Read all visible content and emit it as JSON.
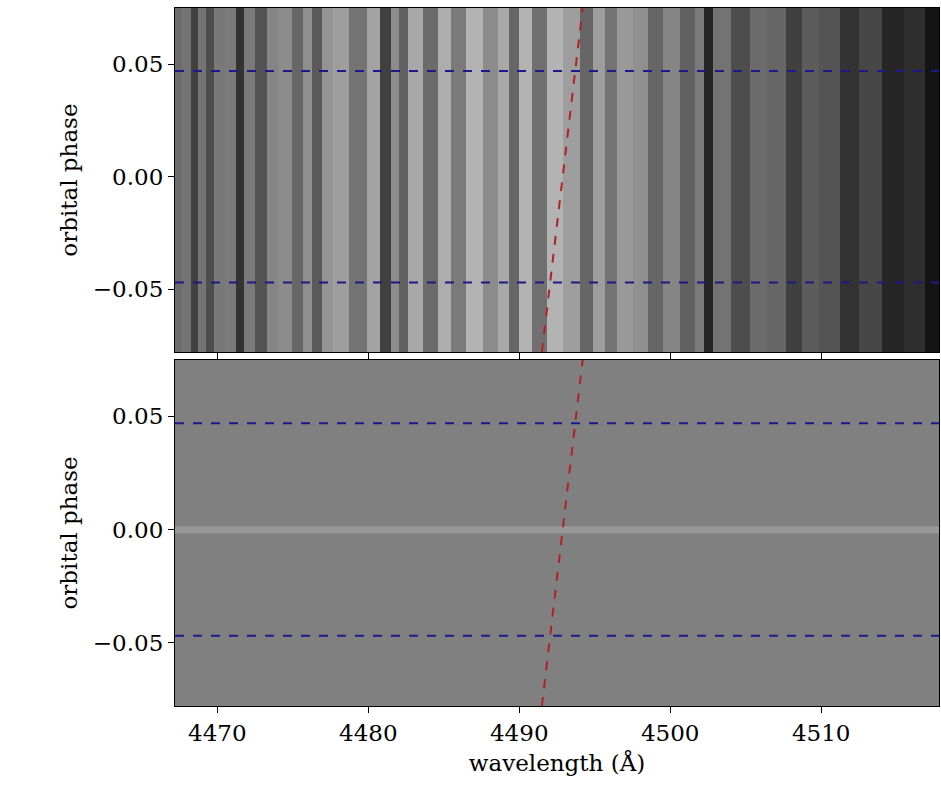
{
  "chart_data": [
    {
      "type": "heatmap",
      "ylabel": "orbital phase",
      "tick_labels": "y",
      "xlim": [
        4467.2,
        4517.8
      ],
      "ylim": [
        -0.078,
        0.075
      ],
      "xticks": [
        4470,
        4480,
        4490,
        4500,
        4510
      ],
      "yticks": [
        {
          "value": -0.05,
          "label": "−0.05"
        },
        {
          "value": 0,
          "label": "0.00"
        },
        0.05
      ],
      "zlim": [
        0,
        1
      ],
      "phase": [
        -0.08,
        0.08
      ],
      "wavelength": [
        4467.2,
        4468.0,
        4468.5,
        4469.0,
        4469.5,
        4470.0,
        4471.0,
        4471.5,
        4472.0,
        4473.0,
        4473.6,
        4474.5,
        4475.4,
        4476.0,
        4476.6,
        4477.3,
        4478.0,
        4479.5,
        4480.3,
        4481.2,
        4481.8,
        4482.3,
        4483.0,
        4484.2,
        4485.0,
        4486.0,
        4487.0,
        4488.2,
        4489.0,
        4489.6,
        4490.3,
        4491.4,
        4492.3,
        4493.5,
        4494.5,
        4495.3,
        4496.0,
        4497.0,
        4498.0,
        4499.0,
        4500.0,
        4501.3,
        4502.0,
        4502.5,
        4503.2,
        4504.8,
        4505.8,
        4507.0,
        4508.3,
        4509.2,
        4510.5,
        4512.0,
        4513.0,
        4515.0,
        4516.0,
        4517.8
      ],
      "flux": [
        0.42,
        0.45,
        0.25,
        0.45,
        0.3,
        0.47,
        0.48,
        0.2,
        0.48,
        0.32,
        0.52,
        0.55,
        0.4,
        0.56,
        0.35,
        0.58,
        0.62,
        0.45,
        0.64,
        0.25,
        0.55,
        0.38,
        0.66,
        0.42,
        0.68,
        0.48,
        0.7,
        0.55,
        0.66,
        0.4,
        0.7,
        0.44,
        0.7,
        0.62,
        0.4,
        0.62,
        0.45,
        0.6,
        0.56,
        0.4,
        0.52,
        0.38,
        0.48,
        0.15,
        0.45,
        0.3,
        0.42,
        0.4,
        0.25,
        0.36,
        0.33,
        0.2,
        0.28,
        0.15,
        0.18,
        0.08
      ],
      "lines": [
        {
          "x": [
            4491.5,
            4494.2
          ],
          "y": [
            -0.078,
            0.075
          ],
          "color": "#b22222",
          "line_style": "dashed"
        },
        {
          "x": [
            4467.2,
            4517.8
          ],
          "y": [
            0.047,
            0.047
          ],
          "color": "#1a1a8c",
          "line_style": "dashed"
        },
        {
          "x": [
            4467.2,
            4517.8
          ],
          "y": [
            -0.047,
            -0.047
          ],
          "color": "#1a1a8c",
          "line_style": "dashed"
        }
      ]
    },
    {
      "type": "heatmap",
      "xlabel": "wavelength (Å)",
      "ylabel": "orbital phase",
      "xlim": [
        4467.2,
        4517.8
      ],
      "ylim": [
        -0.078,
        0.075
      ],
      "xticks": [
        4470,
        4480,
        4490,
        4500,
        4510
      ],
      "yticks": [
        {
          "value": -0.05,
          "label": "−0.05"
        },
        {
          "value": 0,
          "label": "0.00"
        },
        0.05
      ],
      "zlim": [
        -1,
        1
      ],
      "wavelength": [
        4467.2,
        4517.8
      ],
      "phase": [
        -0.08,
        -0.003,
        0,
        0.003,
        0.08
      ],
      "residual": [
        0,
        0,
        0.2,
        0,
        0
      ],
      "lines": [
        {
          "x": [
            4491.5,
            4494.2
          ],
          "y": [
            -0.078,
            0.075
          ],
          "color": "#b22222",
          "line_style": "dashed"
        },
        {
          "x": [
            4467.2,
            4517.8
          ],
          "y": [
            0.047,
            0.047
          ],
          "color": "#1a1a8c",
          "line_style": "dashed"
        },
        {
          "x": [
            4467.2,
            4517.8
          ],
          "y": [
            -0.047,
            -0.047
          ],
          "color": "#1a1a8c",
          "line_style": "dashed"
        }
      ]
    }
  ]
}
